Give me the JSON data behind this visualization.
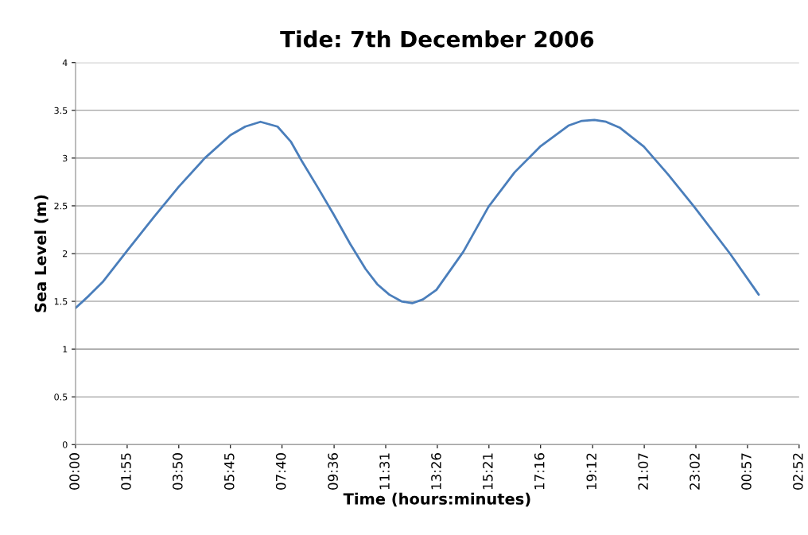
{
  "chart_data": {
    "type": "line",
    "title": "Tide: 7th December 2006",
    "xlabel": "Time (hours:minutes)",
    "ylabel": "Sea Level (m)",
    "series": [
      {
        "color": "#4a7ebb",
        "x": [
          "2006-12-07T00:00",
          "2006-12-07T00:30",
          "2006-12-07T01:00",
          "2006-12-07T01:55",
          "2006-12-07T02:54",
          "2006-12-07T03:50",
          "2006-12-07T04:48",
          "2006-12-07T05:45",
          "2006-12-07T06:18",
          "2006-12-07T06:52",
          "2006-12-07T07:30",
          "2006-12-07T08:00",
          "2006-12-07T08:24",
          "2006-12-07T09:00",
          "2006-12-07T09:35",
          "2006-12-07T10:12",
          "2006-12-07T10:46",
          "2006-12-07T11:12",
          "2006-12-07T11:39",
          "2006-12-07T12:06",
          "2006-12-07T12:30",
          "2006-12-07T12:54",
          "2006-12-07T13:24",
          "2006-12-07T14:24",
          "2006-12-07T15:20",
          "2006-12-07T16:18",
          "2006-12-07T17:15",
          "2006-12-07T18:18",
          "2006-12-07T18:48",
          "2006-12-07T19:16",
          "2006-12-07T19:42",
          "2006-12-07T20:12",
          "2006-12-07T21:06",
          "2006-12-07T22:00",
          "2006-12-07T23:00",
          "2006-12-08T00:18",
          "2006-12-08T01:22"
        ],
        "values": [
          1.43,
          1.56,
          1.7,
          2.03,
          2.38,
          2.7,
          3.0,
          3.24,
          3.33,
          3.38,
          3.33,
          3.17,
          2.97,
          2.69,
          2.41,
          2.1,
          1.84,
          1.68,
          1.57,
          1.5,
          1.48,
          1.52,
          1.62,
          2.02,
          2.49,
          2.85,
          3.12,
          3.34,
          3.39,
          3.4,
          3.38,
          3.32,
          3.12,
          2.83,
          2.48,
          2.0,
          1.57
        ]
      }
    ],
    "xlim": [
      "2006-12-07T00:00",
      "2006-12-08T02:52"
    ],
    "xticks": [
      {
        "value": "2006-12-07T00:00",
        "label": "00:00"
      },
      {
        "value": "2006-12-07T01:55",
        "label": "01:55"
      },
      {
        "value": "2006-12-07T03:50",
        "label": "03:50"
      },
      {
        "value": "2006-12-07T05:45",
        "label": "05:45"
      },
      {
        "value": "2006-12-07T07:40",
        "label": "07:40"
      },
      {
        "value": "2006-12-07T09:36",
        "label": "09:36"
      },
      {
        "value": "2006-12-07T11:31",
        "label": "11:31"
      },
      {
        "value": "2006-12-07T13:26",
        "label": "13:26"
      },
      {
        "value": "2006-12-07T15:21",
        "label": "15:21"
      },
      {
        "value": "2006-12-07T17:16",
        "label": "17:16"
      },
      {
        "value": "2006-12-07T19:12",
        "label": "19:12"
      },
      {
        "value": "2006-12-07T21:07",
        "label": "21:07"
      },
      {
        "value": "2006-12-07T23:02",
        "label": "23:02"
      },
      {
        "value": "2006-12-08T00:57",
        "label": "00:57"
      },
      {
        "value": "2006-12-08T02:52",
        "label": "02:52"
      }
    ],
    "ylim": [
      0,
      4
    ],
    "yticks": [
      0,
      0.5,
      1,
      1.5,
      2,
      2.5,
      3,
      3.5,
      4
    ],
    "grid": "y",
    "legend": false,
    "marker": "none",
    "line_style": "solid"
  }
}
